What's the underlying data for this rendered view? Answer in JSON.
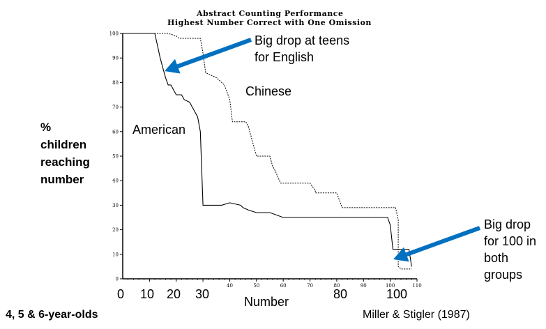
{
  "chart_data": {
    "type": "line",
    "title": "Abstract Counting Performance",
    "subtitle": "Highest Number Correct with One Omission",
    "xlabel": "Number",
    "ylabel": [
      "%",
      "children",
      "reaching",
      "number"
    ],
    "xlim": [
      0,
      110
    ],
    "ylim": [
      0,
      100
    ],
    "y_ticks": [
      "100",
      "90",
      "80",
      "70",
      "60",
      "50",
      "40",
      "30",
      "20",
      "10",
      "0"
    ],
    "x_ticks_small": [
      "10",
      "20",
      "30",
      "40",
      "50",
      "60",
      "70",
      "80",
      "90",
      "100",
      "110"
    ],
    "x_ticks_large": [
      "0",
      "10",
      "20",
      "30",
      "80",
      "100"
    ],
    "series": [
      {
        "name": "American",
        "style": "solid",
        "points": [
          [
            0,
            100
          ],
          [
            12,
            100
          ],
          [
            13,
            95
          ],
          [
            14,
            90
          ],
          [
            15,
            86
          ],
          [
            16,
            82
          ],
          [
            17,
            79
          ],
          [
            18,
            79
          ],
          [
            19,
            77
          ],
          [
            20,
            75
          ],
          [
            22,
            75
          ],
          [
            23,
            73
          ],
          [
            25,
            72
          ],
          [
            26,
            70
          ],
          [
            28,
            66
          ],
          [
            29,
            60
          ],
          [
            30,
            30
          ],
          [
            32,
            30
          ],
          [
            34,
            30
          ],
          [
            35,
            30
          ],
          [
            36,
            30
          ],
          [
            37,
            30
          ],
          [
            40,
            31
          ],
          [
            44,
            30
          ],
          [
            45,
            29
          ],
          [
            47,
            28
          ],
          [
            50,
            27
          ],
          [
            55,
            27
          ],
          [
            60,
            25
          ],
          [
            99,
            25
          ],
          [
            100,
            22
          ],
          [
            101,
            12
          ],
          [
            107,
            12
          ],
          [
            108,
            5
          ]
        ]
      },
      {
        "name": "Chinese",
        "style": "dashed",
        "points": [
          [
            0,
            100
          ],
          [
            17,
            100
          ],
          [
            20,
            99
          ],
          [
            21,
            98
          ],
          [
            29,
            98
          ],
          [
            30,
            92
          ],
          [
            31,
            84
          ],
          [
            33,
            83
          ],
          [
            35,
            82
          ],
          [
            38,
            79
          ],
          [
            40,
            73
          ],
          [
            41,
            64
          ],
          [
            46,
            64
          ],
          [
            47,
            62
          ],
          [
            48,
            58
          ],
          [
            50,
            50
          ],
          [
            55,
            50
          ],
          [
            56,
            46
          ],
          [
            57,
            44
          ],
          [
            59,
            39
          ],
          [
            70,
            39
          ],
          [
            72,
            36
          ],
          [
            72,
            35
          ],
          [
            80,
            35
          ],
          [
            82,
            29
          ],
          [
            102,
            29
          ],
          [
            103,
            24
          ],
          [
            103,
            5
          ],
          [
            104,
            4
          ],
          [
            108,
            4
          ]
        ]
      }
    ],
    "annotations": [
      {
        "text": [
          "Big drop at teens",
          "for English"
        ],
        "color": "#0070c0"
      },
      {
        "text": [
          "Big drop",
          "for 100 in",
          "both",
          "groups"
        ],
        "color": "#0070c0"
      },
      {
        "text": [
          "Chinese"
        ]
      },
      {
        "text": [
          "American"
        ]
      }
    ],
    "grid": false,
    "legend": "none"
  },
  "footer": {
    "left": "4, 5 & 6-year-olds",
    "right": "Miller & Stigler (1987)"
  }
}
